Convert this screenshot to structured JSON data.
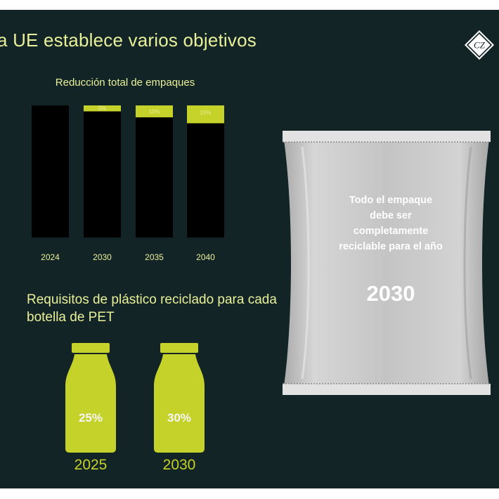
{
  "header": {
    "title": "a UE establece varios objetivos"
  },
  "chart_data": [
    {
      "type": "bar",
      "title": "Reducción total de empaques",
      "categories": [
        "2024",
        "2030",
        "2035",
        "2040"
      ],
      "series": [
        {
          "values": [
            0,
            5,
            10,
            15
          ],
          "labels": [
            "",
            "5%",
            "10%",
            "15%"
          ]
        }
      ],
      "ylim": [
        0,
        100
      ],
      "grid": false,
      "colors": {
        "bar": "#000000",
        "reduction": "#c5d22a",
        "label": "#e9f09a"
      }
    },
    {
      "type": "bar",
      "title": "Requisitos de plástico reciclado para cada botella de PET",
      "categories": [
        "2025",
        "2030"
      ],
      "values": [
        25,
        30
      ],
      "labels": [
        "25%",
        "30%"
      ],
      "colors": {
        "bottle": "#c5d22a",
        "value_text": "#f5f5f5",
        "year_text": "#c5d22a"
      }
    }
  ],
  "package": {
    "text": "Todo el empaque debe ser completamente reciclable para el año",
    "year": "2030",
    "color": "#c8c8c8"
  },
  "logo": {
    "icon": "diamond-logo-icon",
    "letters": "CZ"
  }
}
